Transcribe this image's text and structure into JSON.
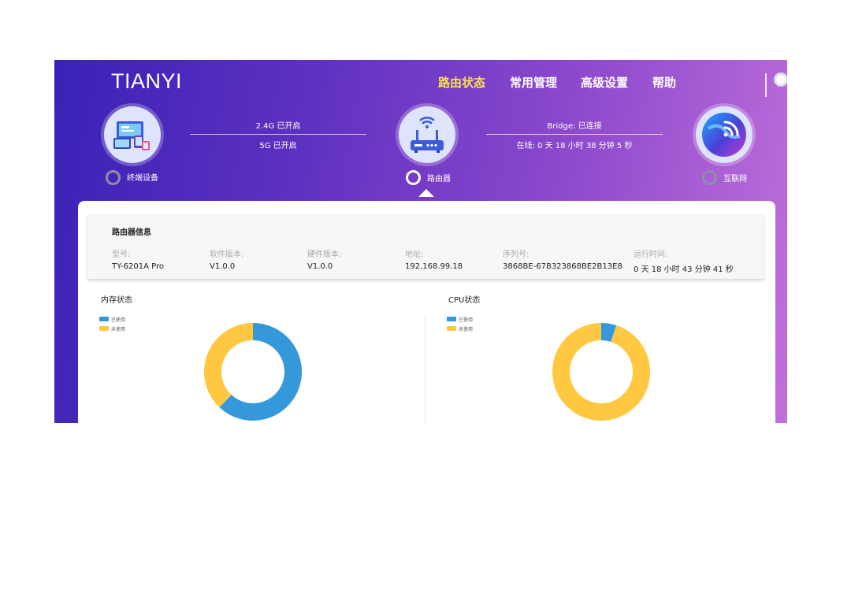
{
  "header": {
    "logo": "TIANYI",
    "nav": [
      {
        "label": "路由状态",
        "active": true
      },
      {
        "label": "常用管理",
        "active": false
      },
      {
        "label": "高级设置",
        "active": false
      },
      {
        "label": "帮助",
        "active": false
      }
    ]
  },
  "topology": {
    "nodes": [
      {
        "label": "终端设备",
        "icon": "devices-icon",
        "selected": false
      },
      {
        "label": "路由器",
        "icon": "router-icon",
        "selected": true
      },
      {
        "label": "互联网",
        "icon": "internet-icon",
        "selected": false
      }
    ],
    "wifi": {
      "band_24": "2.4G 已开启",
      "band_5": "5G 已开启"
    },
    "wan": {
      "bridge": "Bridge: 已连接",
      "online": "在线: 0 天 18 小时 38 分钟 5 秒"
    }
  },
  "router_info": {
    "title": "路由器信息",
    "fields": [
      {
        "label": "型号:",
        "value": "TY-6201A Pro"
      },
      {
        "label": "软件版本:",
        "value": "V1.0.0"
      },
      {
        "label": "硬件版本:",
        "value": "V1.0.0"
      },
      {
        "label": "地址:",
        "value": "192.168.99.18"
      },
      {
        "label": "序列号:",
        "value": "3868BE-67B323868BE2B13E8"
      },
      {
        "label": "运行时间:",
        "value": "0 天 18 小时 43 分钟 41 秒"
      }
    ]
  },
  "memory": {
    "title": "内存状态",
    "legend": [
      "已使用",
      "未使用"
    ]
  },
  "cpu": {
    "title": "CPU状态",
    "legend": [
      "已使用",
      "未使用"
    ]
  },
  "colors": {
    "used": "#3498db",
    "unused": "#ffc840",
    "active_nav": "#ffe44d"
  },
  "chart_data": [
    {
      "type": "pie",
      "title": "内存状态",
      "categories": [
        "已使用",
        "未使用"
      ],
      "values": [
        0.62,
        0.38
      ]
    },
    {
      "type": "pie",
      "title": "CPU状态",
      "categories": [
        "已使用",
        "未使用"
      ],
      "values": [
        0.05,
        0.95
      ]
    }
  ]
}
